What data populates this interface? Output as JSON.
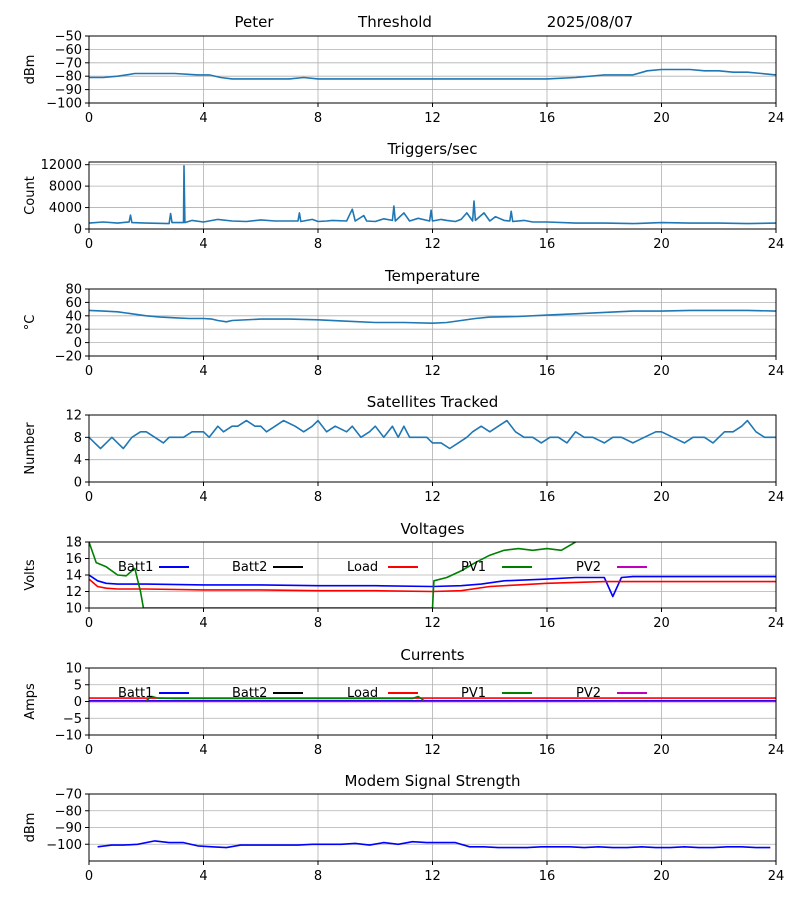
{
  "header": {
    "name": "Peter",
    "mode": "Threshold",
    "date": "2025/08/07"
  },
  "chart_data": [
    {
      "id": "signal",
      "type": "line",
      "title": "",
      "ylabel": "dBm",
      "xlim": [
        0,
        24
      ],
      "ylim": [
        -100,
        -50
      ],
      "xticks": [
        0,
        4,
        8,
        12,
        16,
        20,
        24
      ],
      "yticks": [
        -100,
        -90,
        -80,
        -70,
        -60,
        -50
      ],
      "ytick_labels": [
        "−100",
        "−90",
        "−80",
        "−70",
        "−60",
        "−50"
      ],
      "grid": true,
      "series": [
        {
          "color": "#1f77b4",
          "x": [
            0,
            0.5,
            1.0,
            1.3,
            1.6,
            2.0,
            3.0,
            3.8,
            4.2,
            4.6,
            5.0,
            6.0,
            7.0,
            7.5,
            8.0,
            8.5,
            9.0,
            9.5,
            10.0,
            11.0,
            12.0,
            13.0,
            14.0,
            15.0,
            16.0,
            17.0,
            18.0,
            18.5,
            19.0,
            19.5,
            20.0,
            21.0,
            21.5,
            22.0,
            22.5,
            23.0,
            23.5,
            24.0
          ],
          "y": [
            -81,
            -81,
            -80,
            -79,
            -78,
            -78,
            -78,
            -79,
            -79,
            -81,
            -82,
            -82,
            -82,
            -81,
            -82,
            -82,
            -82,
            -82,
            -82,
            -82,
            -82,
            -82,
            -82,
            -82,
            -82,
            -81,
            -79,
            -79,
            -79,
            -76,
            -75,
            -75,
            -76,
            -76,
            -77,
            -77,
            -78,
            -79
          ]
        }
      ]
    },
    {
      "id": "triggers",
      "type": "line",
      "title": "Triggers/sec",
      "ylabel": "Count",
      "xlim": [
        0,
        24
      ],
      "ylim": [
        0,
        12500
      ],
      "xticks": [
        0,
        4,
        8,
        12,
        16,
        20,
        24
      ],
      "yticks": [
        0,
        4000,
        8000,
        12000
      ],
      "ytick_labels": [
        "0",
        "4000",
        "8000",
        "12000"
      ],
      "grid": true,
      "series": [
        {
          "color": "#1f77b4",
          "x": [
            0,
            0.5,
            1.0,
            1.4,
            1.45,
            1.5,
            2.0,
            2.8,
            2.85,
            2.9,
            3.3,
            3.32,
            3.35,
            3.6,
            4.0,
            4.5,
            5.0,
            5.5,
            6.0,
            6.5,
            7.0,
            7.3,
            7.35,
            7.4,
            7.8,
            8.0,
            8.3,
            8.5,
            9.0,
            9.2,
            9.3,
            9.6,
            9.7,
            10.0,
            10.3,
            10.6,
            10.65,
            10.7,
            11.0,
            11.2,
            11.5,
            11.9,
            11.95,
            12.0,
            12.3,
            12.5,
            12.8,
            13.0,
            13.2,
            13.4,
            13.45,
            13.5,
            13.8,
            14.0,
            14.2,
            14.5,
            14.7,
            14.75,
            14.8,
            15.2,
            15.5,
            16.0,
            17.0,
            18.0,
            19.0,
            20.0,
            21.0,
            22.0,
            23.0,
            24.0
          ],
          "y": [
            1100,
            1300,
            1100,
            1300,
            2600,
            1200,
            1100,
            1000,
            2900,
            1200,
            1200,
            11800,
            1200,
            1600,
            1300,
            1800,
            1500,
            1400,
            1700,
            1500,
            1500,
            1500,
            3000,
            1400,
            1800,
            1400,
            1500,
            1600,
            1500,
            3700,
            1500,
            2500,
            1500,
            1400,
            1900,
            1600,
            4300,
            1500,
            3000,
            1500,
            2000,
            1500,
            3500,
            1500,
            1800,
            1600,
            1400,
            1800,
            3000,
            1500,
            5200,
            1600,
            3000,
            1500,
            2300,
            1600,
            1500,
            3300,
            1400,
            1600,
            1300,
            1300,
            1100,
            1100,
            1000,
            1200,
            1100,
            1100,
            1000,
            1100
          ]
        }
      ]
    },
    {
      "id": "temperature",
      "type": "line",
      "title": "Temperature",
      "ylabel": "°C",
      "xlim": [
        0,
        24
      ],
      "ylim": [
        -20,
        80
      ],
      "xticks": [
        0,
        4,
        8,
        12,
        16,
        20,
        24
      ],
      "yticks": [
        -20,
        0,
        20,
        40,
        60,
        80
      ],
      "ytick_labels": [
        "−20",
        "0",
        "20",
        "40",
        "60",
        "80"
      ],
      "grid": true,
      "series": [
        {
          "color": "#1f77b4",
          "x": [
            0,
            0.5,
            1.0,
            1.5,
            2.0,
            2.5,
            3.0,
            3.5,
            4.0,
            4.3,
            4.5,
            4.8,
            5.0,
            6.0,
            7.0,
            8.0,
            9.0,
            10.0,
            11.0,
            12.0,
            12.5,
            13.0,
            13.5,
            14.0,
            15.0,
            16.0,
            17.0,
            18.0,
            19.0,
            20.0,
            21.0,
            22.0,
            23.0,
            24.0
          ],
          "y": [
            48,
            47,
            46,
            43,
            40,
            38,
            37,
            36,
            36,
            35,
            33,
            31,
            33,
            35,
            35,
            34,
            32,
            30,
            30,
            29,
            30,
            33,
            36,
            38,
            39,
            41,
            43,
            45,
            47,
            47,
            48,
            48,
            48,
            47
          ]
        }
      ]
    },
    {
      "id": "satellites",
      "type": "line",
      "title": "Satellites Tracked",
      "ylabel": "Number",
      "xlim": [
        0,
        24
      ],
      "ylim": [
        0,
        12
      ],
      "xticks": [
        0,
        4,
        8,
        12,
        16,
        20,
        24
      ],
      "yticks": [
        0,
        4,
        8,
        12
      ],
      "ytick_labels": [
        "0",
        "4",
        "8",
        "12"
      ],
      "grid": true,
      "series": [
        {
          "color": "#1f77b4",
          "x": [
            0,
            0.2,
            0.4,
            0.6,
            0.8,
            1.0,
            1.2,
            1.5,
            1.8,
            2.0,
            2.3,
            2.6,
            2.8,
            3.0,
            3.3,
            3.6,
            4.0,
            4.2,
            4.5,
            4.7,
            5.0,
            5.2,
            5.5,
            5.8,
            6.0,
            6.2,
            6.5,
            6.8,
            7.2,
            7.5,
            7.8,
            8.0,
            8.3,
            8.6,
            9.0,
            9.2,
            9.5,
            9.8,
            10.0,
            10.3,
            10.6,
            10.8,
            11.0,
            11.2,
            11.5,
            11.8,
            12.0,
            12.3,
            12.6,
            12.9,
            13.2,
            13.4,
            13.7,
            14.0,
            14.3,
            14.6,
            14.9,
            15.2,
            15.5,
            15.8,
            16.1,
            16.4,
            16.7,
            17.0,
            17.3,
            17.6,
            18.0,
            18.3,
            18.6,
            19.0,
            19.4,
            19.8,
            20.0,
            20.4,
            20.8,
            21.1,
            21.5,
            21.8,
            22.2,
            22.5,
            22.8,
            23.0,
            23.3,
            23.6,
            24.0
          ],
          "y": [
            8,
            7,
            6,
            7,
            8,
            7,
            6,
            8,
            9,
            9,
            8,
            7,
            8,
            8,
            8,
            9,
            9,
            8,
            10,
            9,
            10,
            10,
            11,
            10,
            10,
            9,
            10,
            11,
            10,
            9,
            10,
            11,
            9,
            10,
            9,
            10,
            8,
            9,
            10,
            8,
            10,
            8,
            10,
            8,
            8,
            8,
            7,
            7,
            6,
            7,
            8,
            9,
            10,
            9,
            10,
            11,
            9,
            8,
            8,
            7,
            8,
            8,
            7,
            9,
            8,
            8,
            7,
            8,
            8,
            7,
            8,
            9,
            9,
            8,
            7,
            8,
            8,
            7,
            9,
            9,
            10,
            11,
            9,
            8,
            8
          ]
        }
      ]
    },
    {
      "id": "voltages",
      "type": "line",
      "title": "Voltages",
      "ylabel": "Volts",
      "xlim": [
        0,
        24
      ],
      "ylim": [
        10,
        18
      ],
      "xticks": [
        0,
        4,
        8,
        12,
        16,
        20,
        24
      ],
      "yticks": [
        10,
        12,
        14,
        16,
        18
      ],
      "ytick_labels": [
        "10",
        "12",
        "14",
        "16",
        "18"
      ],
      "grid": true,
      "legend": "top, in one row",
      "series": [
        {
          "name": "Batt1",
          "color": "#0000ff",
          "x": [
            0,
            0.3,
            0.6,
            1,
            2,
            4,
            6,
            8,
            10,
            12,
            13,
            13.7,
            14.5,
            16,
            17,
            18,
            18.3,
            18.6,
            19,
            20,
            22,
            24
          ],
          "y": [
            14.0,
            13.3,
            13.0,
            12.9,
            12.9,
            12.8,
            12.8,
            12.7,
            12.7,
            12.6,
            12.7,
            12.9,
            13.3,
            13.5,
            13.7,
            13.7,
            11.4,
            13.7,
            13.8,
            13.8,
            13.8,
            13.8
          ]
        },
        {
          "name": "Batt2",
          "color": "#000000",
          "x": [],
          "y": []
        },
        {
          "name": "Load",
          "color": "#ff0000",
          "x": [
            0,
            0.3,
            0.6,
            1,
            2,
            4,
            6,
            8,
            10,
            12,
            13,
            14,
            15,
            16,
            18,
            20,
            22,
            24
          ],
          "y": [
            13.5,
            12.6,
            12.4,
            12.3,
            12.3,
            12.2,
            12.2,
            12.1,
            12.1,
            12.0,
            12.1,
            12.6,
            12.8,
            13.0,
            13.2,
            13.2,
            13.2,
            13.2
          ]
        },
        {
          "name": "PV1",
          "color": "#008000",
          "x": [
            0,
            0.25,
            0.6,
            1.0,
            1.3,
            1.6,
            1.8,
            1.9,
            12.0,
            12.05,
            12.5,
            13.0,
            13.5,
            14.0,
            14.5,
            15.0,
            15.5,
            16.0,
            16.5,
            17.0
          ],
          "y": [
            18.0,
            15.5,
            15.0,
            14.0,
            13.9,
            14.8,
            12.0,
            10.0,
            10.0,
            13.3,
            13.7,
            14.5,
            15.5,
            16.4,
            17.0,
            17.2,
            17.0,
            17.2,
            17.0,
            18.0
          ]
        },
        {
          "name": "PV2",
          "color": "#bf00bf",
          "x": [],
          "y": []
        }
      ]
    },
    {
      "id": "currents",
      "type": "line",
      "title": "Currents",
      "ylabel": "Amps",
      "xlim": [
        0,
        24
      ],
      "ylim": [
        -10,
        10
      ],
      "xticks": [
        0,
        4,
        8,
        12,
        16,
        20,
        24
      ],
      "yticks": [
        -10,
        -5,
        0,
        5,
        10
      ],
      "ytick_labels": [
        "−10",
        "−5",
        "0",
        "5",
        "10"
      ],
      "grid": true,
      "legend": "top, in one row",
      "series": [
        {
          "name": "Batt1",
          "color": "#0000ff",
          "x": [
            0,
            24
          ],
          "y": [
            0.2,
            0.2
          ]
        },
        {
          "name": "Batt2",
          "color": "#000000",
          "x": [],
          "y": []
        },
        {
          "name": "Load",
          "color": "#ff0000",
          "x": [
            0,
            6,
            12,
            18,
            24
          ],
          "y": [
            1.0,
            1.0,
            1.0,
            1.0,
            1.0
          ]
        },
        {
          "name": "PV1",
          "color": "#008000",
          "x": [
            2.0,
            2.2,
            2.4,
            3,
            6,
            9,
            11.3,
            11.5,
            11.7
          ],
          "y": [
            0.3,
            1.5,
            1.0,
            0.9,
            0.9,
            0.9,
            0.9,
            1.5,
            0.3
          ]
        },
        {
          "name": "PV2",
          "color": "#bf00bf",
          "x": [
            0,
            24
          ],
          "y": [
            0.0,
            0.0
          ]
        }
      ]
    },
    {
      "id": "modem",
      "type": "line",
      "title": "Modem Signal Strength",
      "ylabel": "dBm",
      "xlim": [
        0,
        24
      ],
      "ylim": [
        -110,
        -70
      ],
      "xticks": [
        0,
        4,
        8,
        12,
        16,
        20,
        24
      ],
      "yticks": [
        -100,
        -90,
        -80,
        -70
      ],
      "ytick_labels": [
        "−100",
        "−90",
        "−80",
        "−70"
      ],
      "grid": true,
      "series": [
        {
          "color": "#0000ff",
          "x": [
            0.3,
            0.8,
            1.2,
            1.7,
            2.3,
            2.8,
            3.3,
            3.8,
            4.3,
            4.8,
            5.3,
            5.8,
            6.3,
            6.8,
            7.3,
            7.8,
            8.3,
            8.8,
            9.3,
            9.8,
            10.3,
            10.8,
            11.3,
            11.8,
            12.3,
            12.8,
            13.3,
            13.8,
            14.3,
            14.8,
            15.3,
            15.8,
            16.3,
            16.8,
            17.3,
            17.8,
            18.3,
            18.8,
            19.3,
            19.8,
            20.3,
            20.8,
            21.3,
            21.8,
            22.3,
            22.8,
            23.3,
            23.8
          ],
          "y": [
            -101.5,
            -100.5,
            -100.5,
            -100,
            -98,
            -99,
            -99,
            -101,
            -101.5,
            -102,
            -100.5,
            -100.5,
            -100.5,
            -100.5,
            -100.5,
            -100,
            -100,
            -100,
            -99.5,
            -100.5,
            -99,
            -100,
            -98.5,
            -99,
            -99,
            -99,
            -101.5,
            -101.5,
            -102,
            -102,
            -102,
            -101.5,
            -101.5,
            -101.5,
            -102,
            -101.5,
            -102,
            -102,
            -101.5,
            -102,
            -102,
            -101.5,
            -102,
            -102,
            -101.5,
            -101.5,
            -102,
            -102
          ]
        }
      ]
    }
  ]
}
